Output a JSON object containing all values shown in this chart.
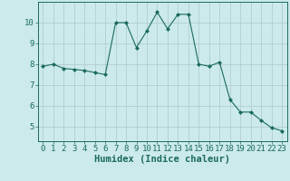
{
  "x": [
    0,
    1,
    2,
    3,
    4,
    5,
    6,
    7,
    8,
    9,
    10,
    11,
    12,
    13,
    14,
    15,
    16,
    17,
    18,
    19,
    20,
    21,
    22,
    23
  ],
  "y": [
    7.9,
    8.0,
    7.8,
    7.75,
    7.7,
    7.6,
    7.5,
    10.0,
    10.0,
    8.8,
    9.6,
    10.5,
    9.7,
    10.4,
    10.4,
    8.0,
    7.9,
    8.1,
    6.3,
    5.7,
    5.7,
    5.3,
    4.95,
    4.8
  ],
  "xlabel": "Humidex (Indice chaleur)",
  "xlim": [
    -0.5,
    23.5
  ],
  "ylim": [
    4.3,
    11.0
  ],
  "yticks": [
    5,
    6,
    7,
    8,
    9,
    10
  ],
  "xticks": [
    0,
    1,
    2,
    3,
    4,
    5,
    6,
    7,
    8,
    9,
    10,
    11,
    12,
    13,
    14,
    15,
    16,
    17,
    18,
    19,
    20,
    21,
    22,
    23
  ],
  "line_color": "#1a6b5a",
  "marker": "D",
  "marker_size": 2.0,
  "bg_color": "#cceaea",
  "grid_color": "#adc8c8",
  "xlabel_fontsize": 7.5,
  "tick_fontsize": 6.5
}
